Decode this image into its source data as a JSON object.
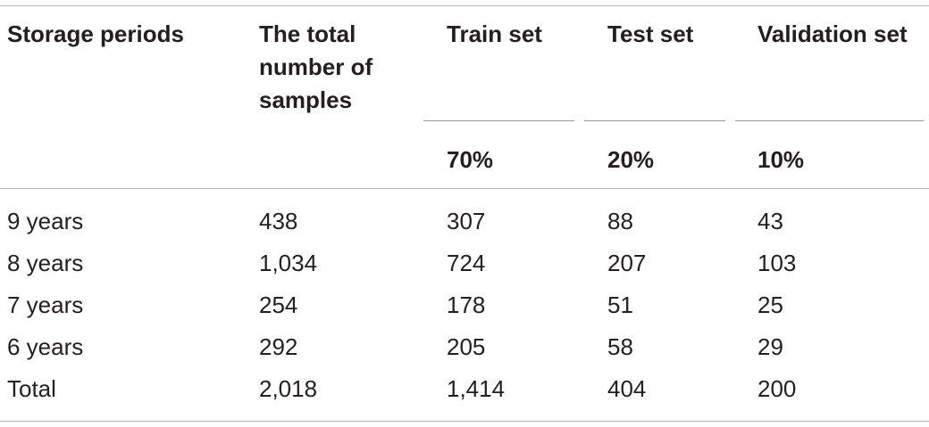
{
  "table": {
    "headers": [
      "Storage periods",
      "The total\nnumber of\nsamples",
      "Train set",
      "Test set",
      "Validation set"
    ],
    "split_percentages": {
      "train": "70%",
      "test": "20%",
      "validation": "10%"
    },
    "rows": [
      [
        "9 years",
        "438",
        "307",
        "88",
        "43"
      ],
      [
        "8 years",
        "1,034",
        "724",
        "207",
        "103"
      ],
      [
        "7 years",
        "254",
        "178",
        "51",
        "25"
      ],
      [
        "6 years",
        "292",
        "205",
        "58",
        "29"
      ],
      [
        "Total",
        "2,018",
        "1,414",
        "404",
        "200"
      ]
    ]
  }
}
